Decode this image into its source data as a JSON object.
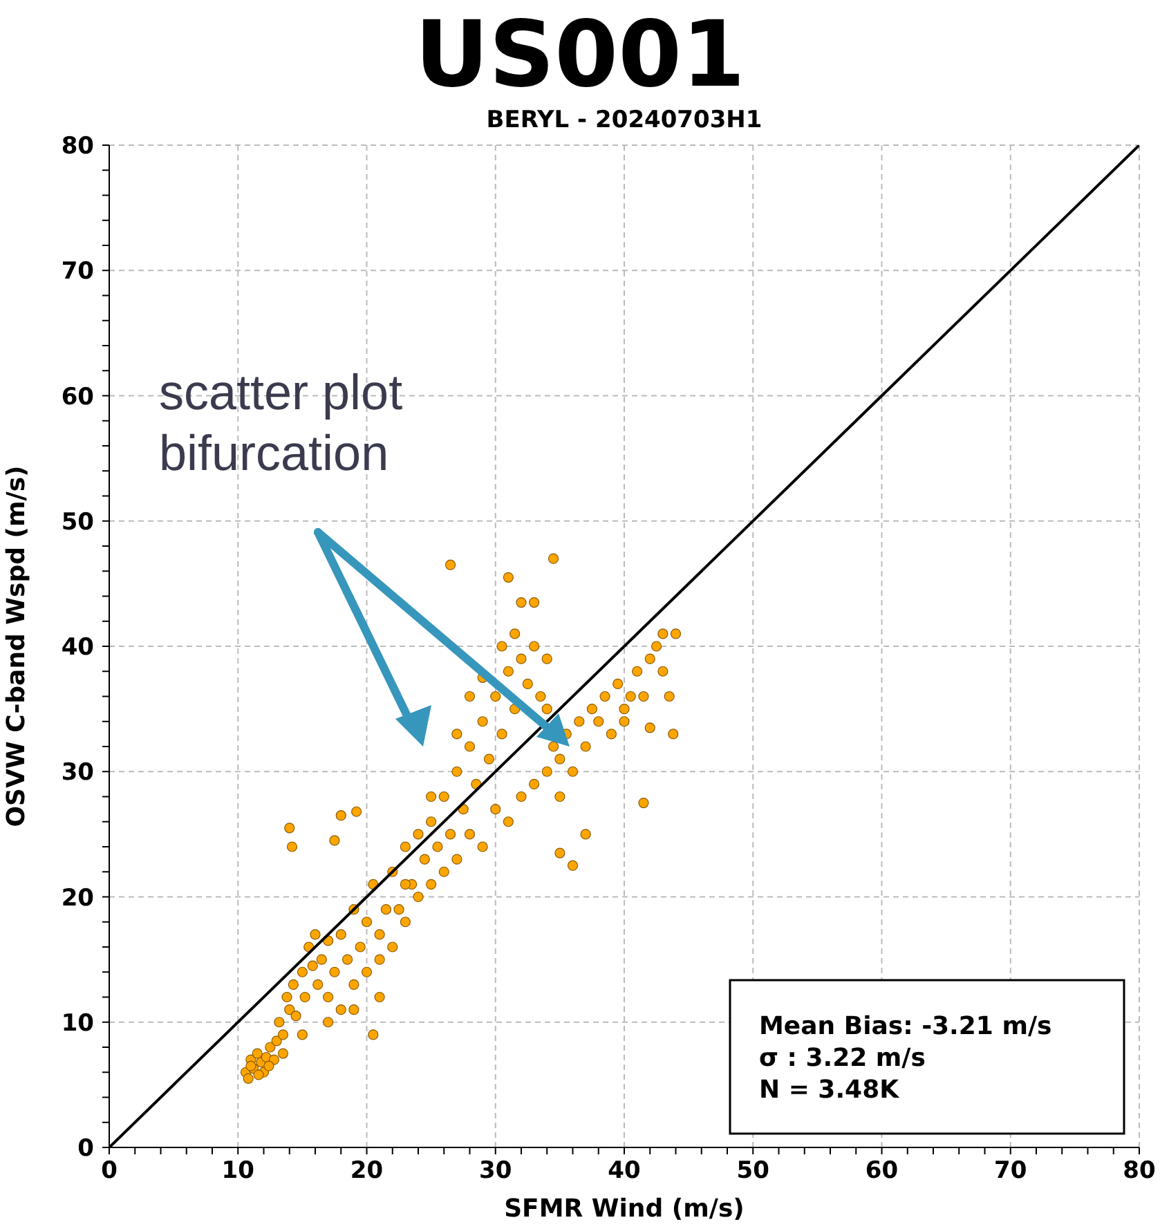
{
  "chart_data": {
    "type": "scatter",
    "title": "US001",
    "subtitle": "BERYL - 20240703H1",
    "xlabel": "SFMR Wind (m/s)",
    "ylabel": "OSVW C-band Wspd (m/s)",
    "annotations": [
      "scatter plot bifurcation",
      "Mean Bias: -3.21 m/s",
      "σ : 3.22 m/s",
      "N = 3.48K"
    ],
    "xlim": [
      0,
      80
    ],
    "ylim": [
      0,
      80
    ],
    "xticks": [
      0,
      {
        "value": 2,
        "label": null
      },
      {
        "value": 4,
        "label": null
      },
      {
        "value": 6,
        "label": null
      },
      {
        "value": 8,
        "label": null
      },
      10,
      {
        "value": 12,
        "label": null
      },
      {
        "value": 14,
        "label": null
      },
      {
        "value": 16,
        "label": null
      },
      {
        "value": 18,
        "label": null
      },
      20,
      {
        "value": 22,
        "label": null
      },
      {
        "value": 24,
        "label": null
      },
      {
        "value": 26,
        "label": null
      },
      {
        "value": 28,
        "label": null
      },
      30,
      {
        "value": 32,
        "label": null
      },
      {
        "value": 34,
        "label": null
      },
      {
        "value": 36,
        "label": null
      },
      {
        "value": 38,
        "label": null
      },
      40,
      {
        "value": 42,
        "label": null
      },
      {
        "value": 44,
        "label": null
      },
      {
        "value": 46,
        "label": null
      },
      {
        "value": 48,
        "label": null
      },
      50,
      {
        "value": 52,
        "label": null
      },
      {
        "value": 54,
        "label": null
      },
      {
        "value": 56,
        "label": null
      },
      {
        "value": 58,
        "label": null
      },
      60,
      {
        "value": 62,
        "label": null
      },
      {
        "value": 64,
        "label": null
      },
      {
        "value": 66,
        "label": null
      },
      {
        "value": 68,
        "label": null
      },
      70,
      {
        "value": 72,
        "label": null
      },
      {
        "value": 74,
        "label": null
      },
      {
        "value": 76,
        "label": null
      },
      {
        "value": 78,
        "label": null
      },
      80
    ],
    "yticks": [
      0,
      {
        "value": 2,
        "label": null
      },
      {
        "value": 4,
        "label": null
      },
      {
        "value": 6,
        "label": null
      },
      {
        "value": 8,
        "label": null
      },
      10,
      {
        "value": 12,
        "label": null
      },
      {
        "value": 14,
        "label": null
      },
      {
        "value": 16,
        "label": null
      },
      {
        "value": 18,
        "label": null
      },
      20,
      {
        "value": 22,
        "label": null
      },
      {
        "value": 24,
        "label": null
      },
      {
        "value": 26,
        "label": null
      },
      {
        "value": 28,
        "label": null
      },
      30,
      {
        "value": 32,
        "label": null
      },
      {
        "value": 34,
        "label": null
      },
      {
        "value": 36,
        "label": null
      },
      {
        "value": 38,
        "label": null
      },
      40,
      {
        "value": 42,
        "label": null
      },
      {
        "value": 44,
        "label": null
      },
      {
        "value": 46,
        "label": null
      },
      {
        "value": 48,
        "label": null
      },
      50,
      {
        "value": 52,
        "label": null
      },
      {
        "value": 54,
        "label": null
      },
      {
        "value": 56,
        "label": null
      },
      {
        "value": 58,
        "label": null
      },
      60,
      {
        "value": 62,
        "label": null
      },
      {
        "value": 64,
        "label": null
      },
      {
        "value": 66,
        "label": null
      },
      {
        "value": 68,
        "label": null
      },
      70,
      {
        "value": 72,
        "label": null
      },
      {
        "value": 74,
        "label": null
      },
      {
        "value": 76,
        "label": null
      },
      {
        "value": 78,
        "label": null
      },
      80
    ],
    "grid": true,
    "series": [
      {
        "marker": "circle",
        "color": "#ffa500",
        "x": [
          10.6,
          10.8,
          11,
          11.2,
          11.5,
          11.8,
          12,
          12.2,
          12.5,
          12.8,
          13,
          11,
          11.6,
          12.4,
          13.2,
          13.5,
          13.8,
          14,
          14.3,
          14.5,
          15,
          15.2,
          15.5,
          15.8,
          16,
          16.2,
          16.5,
          17,
          17,
          17.5,
          18,
          18,
          18.5,
          19,
          19,
          19.5,
          20,
          20,
          20.5,
          21,
          21,
          21.5,
          22,
          22,
          22.5,
          23,
          23,
          23.5,
          24,
          24,
          24.5,
          25,
          25,
          25.5,
          26,
          26,
          26.5,
          27,
          27,
          27.5,
          28,
          28,
          28.5,
          29,
          29,
          29.5,
          30,
          30,
          30.5,
          31,
          31,
          31.5,
          32,
          32,
          32.5,
          33,
          33,
          33.5,
          34,
          34,
          34.5,
          35,
          35,
          35.5,
          36,
          36.5,
          37,
          37.5,
          38,
          38.5,
          39,
          39.5,
          40,
          40.5,
          41,
          41.5,
          42,
          42.5,
          43,
          43,
          44,
          43.5,
          42,
          40,
          28,
          27,
          29,
          30.5,
          31.5,
          33,
          34,
          25,
          23,
          21,
          19,
          17,
          15,
          13.5,
          14,
          14.2,
          26.5,
          31,
          34.5,
          32,
          18,
          19.2,
          17.5,
          36,
          41.5,
          43.8,
          20.5,
          37,
          35
        ],
        "values": [
          6,
          5.5,
          7,
          6.3,
          7.5,
          6.8,
          6,
          7.2,
          8,
          7,
          8.5,
          6.5,
          5.8,
          6.5,
          10,
          9,
          12,
          11,
          13,
          10.5,
          14,
          12,
          16,
          14.5,
          17,
          13,
          15,
          16.5,
          12,
          14,
          17,
          11,
          15,
          19,
          13,
          16,
          18,
          14,
          21,
          17,
          12,
          19,
          22,
          16,
          19,
          24,
          18,
          21,
          25,
          20,
          23,
          26,
          21,
          24,
          28,
          22,
          25,
          30,
          23,
          27,
          32,
          25,
          29,
          34,
          24,
          31,
          36,
          27,
          33,
          38,
          26,
          35,
          39,
          28,
          37,
          40,
          29,
          36,
          35,
          30,
          32,
          31,
          28,
          33,
          30,
          34,
          32,
          35,
          34,
          36,
          33,
          37,
          35,
          36,
          38,
          36,
          39,
          40,
          38,
          41,
          41,
          36,
          33.5,
          34,
          36,
          33,
          37.5,
          40,
          41,
          43.5,
          39,
          28,
          21,
          15,
          11,
          10,
          9,
          7.5,
          25.5,
          24,
          46.5,
          45.5,
          47,
          43.5,
          26.5,
          26.8,
          24.5,
          22.5,
          27.5,
          33,
          9,
          25,
          23.5
        ]
      },
      {
        "type": "line",
        "marker": "none",
        "color": "#000000",
        "x": [
          0,
          80
        ],
        "values": [
          0,
          80
        ]
      }
    ]
  }
}
